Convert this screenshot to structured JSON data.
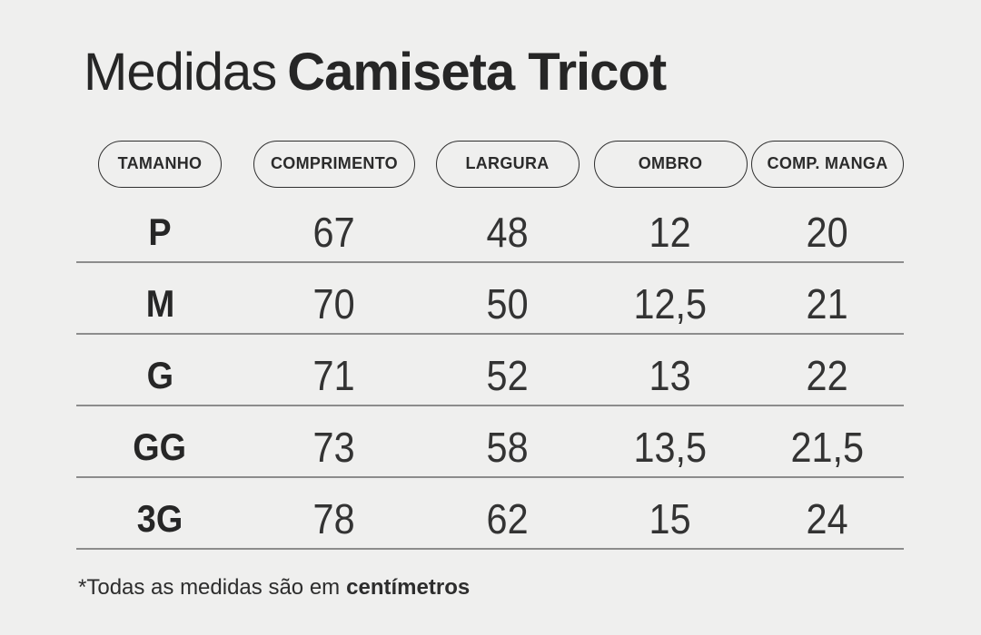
{
  "colors": {
    "background": "#efefee",
    "text": "#2a2a2a",
    "separator_line": "#8c8c8c",
    "pill_border": "#2f2f2f"
  },
  "title": {
    "light": "Medidas",
    "bold": "Camiseta Tricot"
  },
  "footnote": {
    "regular": "*Todas as medidas são em",
    "bold": "centímetros"
  },
  "chart_data": {
    "type": "table",
    "title": "Medidas Camiseta Tricot",
    "columns": [
      "TAMANHO",
      "COMPRIMENTO",
      "LARGURA",
      "OMBRO",
      "COMP. MANGA"
    ],
    "rows": [
      {
        "size": "P",
        "values": [
          "67",
          "48",
          "12",
          "20"
        ]
      },
      {
        "size": "M",
        "values": [
          "70",
          "50",
          "12,5",
          "21"
        ]
      },
      {
        "size": "G",
        "values": [
          "71",
          "52",
          "13",
          "22"
        ]
      },
      {
        "size": "GG",
        "values": [
          "73",
          "58",
          "13,5",
          "21,5"
        ]
      },
      {
        "size": "3G",
        "values": [
          "78",
          "62",
          "15",
          "24"
        ]
      }
    ],
    "note": "*Todas as medidas são em centímetros",
    "layout": {
      "grid": "horizontal separator lines under each row",
      "header_style": "outlined pills"
    }
  }
}
